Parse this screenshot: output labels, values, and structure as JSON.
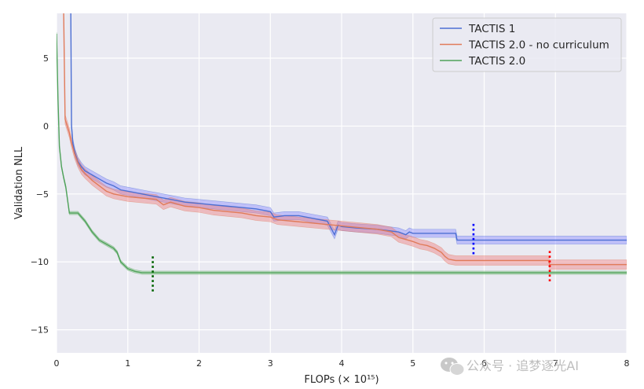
{
  "chart_data": {
    "type": "line",
    "title": "",
    "xlabel": "FLOPs (× 10¹⁵)",
    "ylabel": "Validation NLL",
    "xlim": [
      0,
      8
    ],
    "ylim": [
      -16.7,
      8.3
    ],
    "x_ticks": [
      "0",
      "1",
      "2",
      "3",
      "4",
      "5",
      "6",
      "7",
      "8"
    ],
    "y_ticks": [
      "5",
      "0",
      "−5",
      "−10",
      "−15"
    ],
    "grid": true,
    "legend_position": "top-right",
    "series": [
      {
        "name": "TACTIS 1",
        "color": "#4c6fd3",
        "band_color": "#8f8fff",
        "x": [
          0.2,
          0.21,
          0.23,
          0.26,
          0.3,
          0.35,
          0.4,
          0.5,
          0.6,
          0.7,
          0.8,
          0.9,
          1.0,
          1.1,
          1.2,
          1.3,
          1.4,
          1.6,
          1.8,
          2.0,
          2.2,
          2.4,
          2.6,
          2.8,
          3.0,
          3.05,
          3.2,
          3.4,
          3.6,
          3.8,
          3.9,
          3.95,
          4.0,
          4.2,
          4.5,
          4.8,
          4.9,
          4.95,
          5.0,
          5.3,
          5.6,
          5.62,
          5.85,
          6.0,
          7.0,
          8.0
        ],
        "y": [
          8.3,
          0.0,
          -1.3,
          -2.0,
          -2.6,
          -3.0,
          -3.3,
          -3.6,
          -3.9,
          -4.2,
          -4.4,
          -4.7,
          -4.8,
          -4.9,
          -5.0,
          -5.1,
          -5.2,
          -5.4,
          -5.6,
          -5.7,
          -5.8,
          -5.9,
          -6.0,
          -6.1,
          -6.3,
          -6.7,
          -6.6,
          -6.6,
          -6.8,
          -7.0,
          -8.0,
          -7.3,
          -7.4,
          -7.5,
          -7.6,
          -7.8,
          -8.0,
          -7.8,
          -7.9,
          -7.9,
          -7.9,
          -8.4,
          -8.4,
          -8.4,
          -8.4,
          -8.4
        ],
        "band": 0.3
      },
      {
        "name": "TACTIS 2.0 - no curriculum",
        "color": "#e07b5a",
        "band_color": "#f08080",
        "x": [
          0.1,
          0.12,
          0.15,
          0.18,
          0.2,
          0.25,
          0.3,
          0.35,
          0.4,
          0.5,
          0.6,
          0.7,
          0.8,
          0.9,
          1.0,
          1.2,
          1.4,
          1.5,
          1.6,
          1.8,
          2.0,
          2.2,
          2.4,
          2.6,
          2.8,
          3.0,
          3.1,
          3.3,
          3.5,
          3.7,
          3.9,
          4.1,
          4.3,
          4.5,
          4.7,
          4.8,
          5.0,
          5.1,
          5.2,
          5.3,
          5.4,
          5.45,
          5.5,
          5.6,
          6.2,
          6.9,
          6.92,
          8.0
        ],
        "y": [
          8.3,
          0.5,
          0.0,
          -0.5,
          -1.0,
          -2.0,
          -2.7,
          -3.2,
          -3.5,
          -4.0,
          -4.4,
          -4.8,
          -5.0,
          -5.1,
          -5.2,
          -5.3,
          -5.4,
          -5.8,
          -5.6,
          -5.9,
          -6.0,
          -6.2,
          -6.3,
          -6.4,
          -6.6,
          -6.7,
          -6.9,
          -7.0,
          -7.1,
          -7.2,
          -7.3,
          -7.4,
          -7.5,
          -7.6,
          -7.8,
          -8.2,
          -8.5,
          -8.7,
          -8.8,
          -9.0,
          -9.3,
          -9.6,
          -9.8,
          -9.9,
          -9.9,
          -9.9,
          -10.2,
          -10.2
        ],
        "band": 0.35
      },
      {
        "name": "TACTIS 2.0",
        "color": "#4fa25a",
        "band_color": "#80c080",
        "x": [
          0.0,
          0.02,
          0.04,
          0.07,
          0.1,
          0.13,
          0.18,
          0.3,
          0.4,
          0.5,
          0.6,
          0.7,
          0.8,
          0.85,
          0.9,
          1.0,
          1.1,
          1.2,
          1.3,
          1.35,
          2.0,
          3.0,
          4.0,
          5.0,
          6.0,
          7.0,
          8.0
        ],
        "y": [
          6.8,
          2.0,
          -1.5,
          -3.0,
          -3.8,
          -4.5,
          -6.4,
          -6.4,
          -7.0,
          -7.8,
          -8.4,
          -8.7,
          -9.0,
          -9.3,
          -10.0,
          -10.5,
          -10.7,
          -10.8,
          -10.8,
          -10.8,
          -10.8,
          -10.8,
          -10.8,
          -10.8,
          -10.8,
          -10.8,
          -10.8
        ],
        "band": 0.12
      }
    ],
    "markers": [
      {
        "x": 1.35,
        "y_from": -9.6,
        "y_to": -12.2,
        "color": "#006400"
      },
      {
        "x": 5.85,
        "y_from": -7.2,
        "y_to": -9.6,
        "color": "#0000ff"
      },
      {
        "x": 6.92,
        "y_from": -9.2,
        "y_to": -11.6,
        "color": "#ff0000"
      }
    ]
  },
  "watermark": {
    "text": "公众号 · 追梦逐光AI"
  }
}
